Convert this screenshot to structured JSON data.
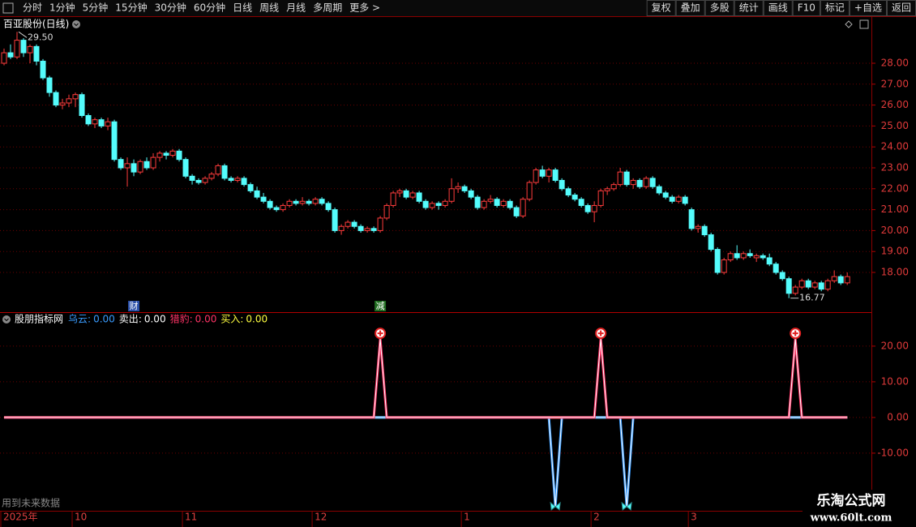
{
  "toolbar": {
    "left": [
      "分时",
      "1分钟",
      "5分钟",
      "15分钟",
      "30分钟",
      "60分钟",
      "日线",
      "周线",
      "月线",
      "多周期",
      "更多 >"
    ],
    "right": [
      "复权",
      "叠加",
      "多股",
      "统计",
      "画线",
      "F10",
      "标记",
      "+自选",
      "返回"
    ]
  },
  "chart_data": [
    {
      "type": "candlestick",
      "title": "百亚股份(日线)",
      "x": [
        0,
        1,
        2,
        3,
        4,
        5,
        6,
        7,
        8,
        9,
        10,
        11,
        12,
        13,
        14,
        15,
        16,
        17,
        18,
        19,
        20,
        21,
        22,
        23,
        24,
        25,
        26,
        27,
        28,
        29,
        30,
        31,
        32,
        33,
        34,
        35,
        36,
        37,
        38,
        39,
        40,
        41,
        42,
        43,
        44,
        45,
        46,
        47,
        48,
        49,
        50,
        51,
        52,
        53,
        54,
        55,
        56,
        57,
        58,
        59,
        60,
        61,
        62,
        63,
        64,
        65,
        66,
        67,
        68,
        69,
        70,
        71,
        72,
        73,
        74,
        75,
        76,
        77,
        78,
        79,
        80,
        81,
        82,
        83,
        84,
        85,
        86,
        87,
        88,
        89,
        90,
        91,
        92,
        93,
        94,
        95,
        96,
        97,
        98,
        99,
        100,
        101,
        102,
        103,
        104,
        105,
        106,
        107,
        108,
        109,
        110,
        111,
        112,
        113,
        114,
        115,
        116,
        117,
        118,
        119,
        120,
        121,
        122,
        123,
        124,
        125,
        126,
        127,
        128,
        129,
        130
      ],
      "ohlc": [
        [
          28.0,
          28.7,
          27.9,
          28.5
        ],
        [
          28.5,
          28.9,
          28.2,
          28.3
        ],
        [
          28.3,
          29.5,
          28.2,
          29.1
        ],
        [
          29.1,
          29.2,
          28.3,
          28.5
        ],
        [
          28.5,
          28.9,
          28.0,
          28.8
        ],
        [
          28.8,
          28.9,
          27.9,
          28.1
        ],
        [
          28.1,
          28.2,
          27.2,
          27.3
        ],
        [
          27.3,
          27.4,
          26.4,
          26.6
        ],
        [
          26.6,
          26.7,
          25.9,
          26.0
        ],
        [
          26.0,
          26.3,
          25.8,
          26.1
        ],
        [
          26.1,
          26.5,
          25.9,
          26.3
        ],
        [
          26.3,
          26.6,
          25.9,
          26.5
        ],
        [
          26.5,
          26.6,
          25.4,
          25.5
        ],
        [
          25.5,
          25.6,
          25.0,
          25.1
        ],
        [
          25.1,
          25.4,
          24.9,
          25.3
        ],
        [
          25.3,
          25.4,
          24.9,
          25.0
        ],
        [
          25.0,
          25.4,
          24.8,
          25.2
        ],
        [
          25.2,
          25.3,
          23.3,
          23.4
        ],
        [
          23.4,
          23.5,
          22.9,
          23.0
        ],
        [
          23.0,
          23.5,
          22.1,
          23.2
        ],
        [
          23.2,
          23.4,
          22.6,
          22.8
        ],
        [
          22.8,
          23.4,
          22.7,
          23.3
        ],
        [
          23.3,
          23.5,
          22.9,
          23.0
        ],
        [
          23.0,
          23.7,
          22.9,
          23.5
        ],
        [
          23.5,
          23.8,
          23.3,
          23.7
        ],
        [
          23.7,
          23.8,
          23.4,
          23.6
        ],
        [
          23.6,
          23.9,
          23.5,
          23.8
        ],
        [
          23.8,
          23.9,
          23.3,
          23.4
        ],
        [
          23.4,
          23.5,
          22.5,
          22.6
        ],
        [
          22.6,
          22.7,
          22.2,
          22.4
        ],
        [
          22.4,
          22.5,
          22.2,
          22.3
        ],
        [
          22.3,
          22.6,
          22.2,
          22.5
        ],
        [
          22.5,
          22.8,
          22.4,
          22.7
        ],
        [
          22.7,
          23.2,
          22.6,
          23.1
        ],
        [
          23.1,
          23.2,
          22.4,
          22.5
        ],
        [
          22.5,
          22.6,
          22.3,
          22.4
        ],
        [
          22.4,
          22.6,
          22.3,
          22.5
        ],
        [
          22.5,
          22.6,
          22.1,
          22.2
        ],
        [
          22.2,
          22.3,
          21.8,
          21.9
        ],
        [
          21.9,
          22.1,
          21.5,
          21.6
        ],
        [
          21.6,
          21.8,
          21.3,
          21.4
        ],
        [
          21.4,
          21.5,
          21.0,
          21.1
        ],
        [
          21.1,
          21.2,
          20.9,
          21.0
        ],
        [
          21.0,
          21.3,
          20.9,
          21.2
        ],
        [
          21.2,
          21.5,
          21.1,
          21.4
        ],
        [
          21.4,
          21.5,
          21.2,
          21.3
        ],
        [
          21.3,
          21.6,
          21.2,
          21.4
        ],
        [
          21.4,
          21.5,
          21.2,
          21.3
        ],
        [
          21.3,
          21.6,
          21.2,
          21.5
        ],
        [
          21.5,
          21.6,
          21.2,
          21.3
        ],
        [
          21.3,
          21.4,
          20.9,
          21.0
        ],
        [
          21.0,
          21.1,
          19.9,
          20.0
        ],
        [
          20.0,
          20.3,
          19.8,
          20.2
        ],
        [
          20.2,
          20.5,
          20.1,
          20.4
        ],
        [
          20.4,
          20.5,
          20.1,
          20.2
        ],
        [
          20.2,
          20.3,
          19.9,
          20.0
        ],
        [
          20.0,
          20.2,
          19.9,
          20.1
        ],
        [
          20.1,
          20.2,
          19.9,
          20.0
        ],
        [
          20.0,
          20.7,
          19.9,
          20.6
        ],
        [
          20.6,
          21.3,
          20.5,
          21.2
        ],
        [
          21.2,
          21.9,
          21.1,
          21.8
        ],
        [
          21.8,
          22.0,
          21.6,
          21.9
        ],
        [
          21.9,
          22.0,
          21.5,
          21.6
        ],
        [
          21.6,
          21.9,
          21.5,
          21.8
        ],
        [
          21.8,
          21.9,
          21.3,
          21.4
        ],
        [
          21.4,
          21.5,
          21.0,
          21.1
        ],
        [
          21.1,
          21.4,
          21.0,
          21.3
        ],
        [
          21.3,
          21.4,
          21.0,
          21.2
        ],
        [
          21.2,
          21.5,
          21.1,
          21.4
        ],
        [
          21.4,
          22.5,
          21.3,
          22.0
        ],
        [
          22.0,
          22.3,
          21.8,
          22.1
        ],
        [
          22.1,
          22.2,
          21.8,
          21.9
        ],
        [
          21.9,
          22.0,
          21.5,
          21.6
        ],
        [
          21.6,
          21.7,
          21.0,
          21.1
        ],
        [
          21.1,
          21.5,
          21.0,
          21.4
        ],
        [
          21.4,
          21.7,
          21.3,
          21.5
        ],
        [
          21.5,
          21.6,
          21.1,
          21.2
        ],
        [
          21.2,
          21.5,
          21.1,
          21.4
        ],
        [
          21.4,
          21.5,
          21.0,
          21.1
        ],
        [
          21.1,
          21.2,
          20.6,
          20.7
        ],
        [
          20.7,
          21.6,
          20.6,
          21.5
        ],
        [
          21.5,
          22.4,
          21.4,
          22.3
        ],
        [
          22.3,
          23.0,
          22.2,
          22.9
        ],
        [
          22.9,
          23.1,
          22.5,
          22.6
        ],
        [
          22.6,
          23.0,
          22.3,
          22.9
        ],
        [
          22.9,
          23.0,
          22.3,
          22.4
        ],
        [
          22.4,
          22.5,
          21.9,
          22.0
        ],
        [
          22.0,
          22.1,
          21.6,
          21.7
        ],
        [
          21.7,
          21.8,
          21.4,
          21.5
        ],
        [
          21.5,
          21.6,
          21.1,
          21.2
        ],
        [
          21.2,
          21.3,
          20.8,
          20.9
        ],
        [
          20.9,
          21.4,
          20.4,
          21.2
        ],
        [
          21.2,
          22.0,
          21.1,
          21.9
        ],
        [
          21.9,
          22.1,
          21.7,
          22.0
        ],
        [
          22.0,
          22.3,
          21.9,
          22.2
        ],
        [
          22.2,
          23.0,
          22.1,
          22.8
        ],
        [
          22.8,
          22.9,
          22.1,
          22.2
        ],
        [
          22.2,
          22.5,
          22.0,
          22.4
        ],
        [
          22.4,
          22.5,
          22.0,
          22.1
        ],
        [
          22.1,
          22.6,
          22.0,
          22.5
        ],
        [
          22.5,
          22.6,
          22.0,
          22.1
        ],
        [
          22.1,
          22.2,
          21.7,
          21.8
        ],
        [
          21.8,
          21.9,
          21.5,
          21.6
        ],
        [
          21.6,
          21.7,
          21.3,
          21.4
        ],
        [
          21.4,
          21.7,
          21.3,
          21.6
        ],
        [
          21.6,
          21.7,
          21.2,
          21.3
        ],
        [
          21.0,
          21.1,
          20.0,
          20.1
        ],
        [
          20.1,
          20.3,
          19.9,
          20.2
        ],
        [
          20.2,
          20.3,
          19.7,
          19.8
        ],
        [
          19.8,
          19.9,
          19.0,
          19.1
        ],
        [
          19.1,
          19.2,
          17.9,
          18.0
        ],
        [
          18.0,
          18.7,
          17.9,
          18.6
        ],
        [
          18.6,
          19.0,
          18.5,
          18.9
        ],
        [
          18.9,
          19.3,
          18.6,
          18.7
        ],
        [
          18.7,
          19.0,
          18.6,
          18.9
        ],
        [
          18.9,
          19.1,
          18.7,
          18.8
        ],
        [
          18.7,
          18.9,
          18.5,
          18.8
        ],
        [
          18.8,
          18.9,
          18.6,
          18.7
        ],
        [
          18.7,
          18.9,
          18.3,
          18.4
        ],
        [
          18.4,
          18.5,
          17.9,
          18.0
        ],
        [
          18.0,
          18.1,
          17.6,
          17.7
        ],
        [
          17.7,
          17.8,
          16.77,
          17.0
        ],
        [
          17.0,
          17.4,
          16.9,
          17.3
        ],
        [
          17.3,
          17.7,
          17.2,
          17.6
        ],
        [
          17.6,
          17.7,
          17.2,
          17.3
        ],
        [
          17.3,
          17.6,
          17.2,
          17.5
        ],
        [
          17.5,
          17.6,
          17.1,
          17.2
        ],
        [
          17.2,
          17.7,
          17.1,
          17.6
        ],
        [
          17.6,
          18.1,
          17.5,
          17.8
        ],
        [
          17.8,
          17.9,
          17.4,
          17.5
        ],
        [
          17.5,
          18.0,
          17.4,
          17.8
        ]
      ],
      "up_color": "#ff3c3c",
      "down_color": "#54fcfc",
      "xlim": [
        -0.5,
        133.6
      ],
      "xticks": [
        {
          "value": 0,
          "label": "2025年"
        },
        {
          "value": 11,
          "label": "10"
        },
        {
          "value": 28,
          "label": "11"
        },
        {
          "value": 48,
          "label": "12"
        },
        {
          "value": 71,
          "label": "1"
        },
        {
          "value": 91,
          "label": "2"
        },
        {
          "value": 106,
          "label": "3"
        }
      ],
      "ylim": [
        16.14,
        29.55
      ],
      "yticks": [
        {
          "value": 18,
          "label": "18.00"
        },
        {
          "value": 19,
          "label": "19.00"
        },
        {
          "value": 20,
          "label": "20.00"
        },
        {
          "value": 21,
          "label": "21.00"
        },
        {
          "value": 22,
          "label": "22.00"
        },
        {
          "value": 23,
          "label": "23.00"
        },
        {
          "value": 24,
          "label": "24.00"
        },
        {
          "value": 25,
          "label": "25.00"
        },
        {
          "value": 26,
          "label": "26.00"
        },
        {
          "value": 27,
          "label": "27.00"
        },
        {
          "value": 28,
          "label": "28.00"
        }
      ],
      "grid": true,
      "annotations": [
        {
          "x": 2,
          "value": 29.5,
          "label": "29.50"
        },
        {
          "x": 121,
          "value": 16.77,
          "label": "16.77"
        }
      ],
      "events": [
        {
          "x": 20,
          "label": "财",
          "color": "#2a4fa8"
        },
        {
          "x": 58,
          "label": "减",
          "color": "#1f6b1f"
        }
      ]
    },
    {
      "type": "line",
      "title": "股朋指标网",
      "legend_separator": ":",
      "xlim": [
        -0.5,
        133.6
      ],
      "ylim": [
        -25.7,
        29.3
      ],
      "yticks": [
        {
          "value": -10,
          "label": "-10.00"
        },
        {
          "value": 0,
          "label": "0.00"
        },
        {
          "value": 10,
          "label": "10.00"
        },
        {
          "value": 20,
          "label": "20.00"
        }
      ],
      "grid": true,
      "series": [
        {
          "name": "卖出",
          "color": "#ffffff",
          "x": [
            0,
            130
          ],
          "values": [
            0,
            0
          ],
          "current_label": "0.00"
        },
        {
          "name": "买入",
          "color": "#ffff40",
          "x": [
            0,
            130
          ],
          "values": [
            0,
            0
          ],
          "current_label": "0.00"
        },
        {
          "name": "乌云",
          "color": "#3a9cff",
          "x": [
            0,
            84,
            85,
            86,
            95,
            96,
            97,
            130
          ],
          "values": [
            0,
            0,
            -25,
            0,
            0,
            -25,
            0,
            0
          ],
          "current_label": "0.00"
        },
        {
          "name": "猎豹",
          "color": "#ff3366",
          "x": [
            0,
            57,
            58,
            59,
            91,
            92,
            93,
            121,
            122,
            123,
            130
          ],
          "values": [
            0,
            0,
            22,
            0,
            0,
            22,
            0,
            0,
            22,
            0,
            0
          ],
          "current_label": "0.00"
        }
      ]
    }
  ],
  "footer_note": "用到未来数据",
  "watermark": {
    "title": "乐淘公式网",
    "url": "www.60lt.com"
  }
}
